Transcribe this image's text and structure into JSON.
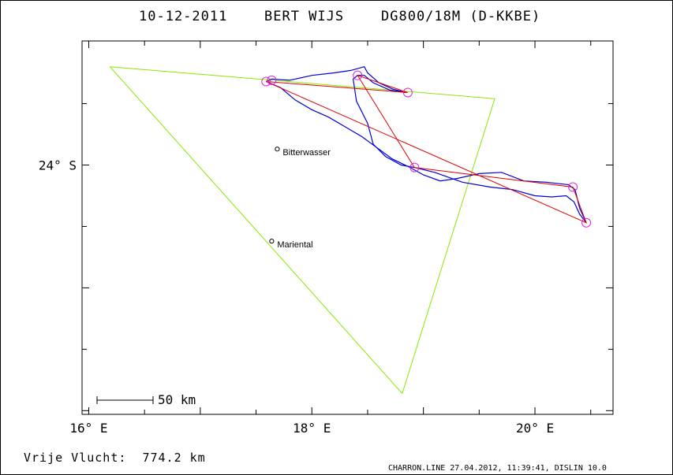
{
  "header": {
    "date": "10-12-2011",
    "pilot": "BERT WIJS",
    "glider": "DG800/18M (D-KKBE)"
  },
  "axes": {
    "x_ticks": [
      {
        "lon": 16,
        "label": "16° E"
      },
      {
        "lon": 18,
        "label": "18° E"
      },
      {
        "lon": 20,
        "label": "20° E"
      }
    ],
    "y_ticks": [
      {
        "lat": -24,
        "label": "24° S"
      }
    ]
  },
  "places": [
    {
      "name": "Bitterwasser",
      "lon": 17.69,
      "lat": -23.87
    },
    {
      "name": "Mariental",
      "lon": 17.64,
      "lat": -24.62
    }
  ],
  "scale": {
    "label": "50 km"
  },
  "footer": {
    "distance_label": "Vrije Vlucht:  774.2 km",
    "credit": "CHARRON.LINE 27.04.2012, 11:39:41, DISLIN 10.0"
  },
  "colors": {
    "track": "#0000d8",
    "task": "#dd0000",
    "triangle": "#88e800",
    "turnpoint": "#dd22dd",
    "frame": "#000000"
  },
  "chart_data": {
    "type": "map",
    "xlim": [
      15.94,
      20.7
    ],
    "ylim": [
      -26.03,
      -22.99
    ],
    "triangle": [
      [
        16.19,
        -23.2
      ],
      [
        19.64,
        -23.46
      ],
      [
        18.81,
        -25.86
      ],
      [
        16.19,
        -23.2
      ]
    ],
    "task_route": [
      [
        17.59,
        -23.32
      ],
      [
        18.86,
        -23.41
      ],
      [
        18.41,
        -23.27
      ],
      [
        18.92,
        -24.02
      ],
      [
        20.34,
        -24.18
      ],
      [
        20.46,
        -24.47
      ],
      [
        17.59,
        -23.32
      ]
    ],
    "turnpoints": [
      [
        17.59,
        -23.32
      ],
      [
        17.64,
        -23.31
      ],
      [
        18.86,
        -23.41
      ],
      [
        18.41,
        -23.27
      ],
      [
        18.92,
        -24.02
      ],
      [
        20.34,
        -24.18
      ],
      [
        20.46,
        -24.47
      ]
    ],
    "track": [
      [
        17.59,
        -23.32
      ],
      [
        17.64,
        -23.3
      ],
      [
        17.8,
        -23.31
      ],
      [
        18.0,
        -23.27
      ],
      [
        18.2,
        -23.25
      ],
      [
        18.35,
        -23.23
      ],
      [
        18.47,
        -23.2
      ],
      [
        18.5,
        -23.25
      ],
      [
        18.6,
        -23.33
      ],
      [
        18.72,
        -23.38
      ],
      [
        18.84,
        -23.41
      ],
      [
        18.7,
        -23.39
      ],
      [
        18.55,
        -23.33
      ],
      [
        18.47,
        -23.27
      ],
      [
        18.41,
        -23.27
      ],
      [
        18.37,
        -23.3
      ],
      [
        18.4,
        -23.48
      ],
      [
        18.5,
        -23.66
      ],
      [
        18.55,
        -23.83
      ],
      [
        18.66,
        -23.93
      ],
      [
        18.8,
        -24.0
      ],
      [
        18.92,
        -24.02
      ],
      [
        19.1,
        -24.06
      ],
      [
        19.35,
        -24.14
      ],
      [
        19.6,
        -24.18
      ],
      [
        19.8,
        -24.2
      ],
      [
        20.0,
        -24.25
      ],
      [
        20.15,
        -24.26
      ],
      [
        20.28,
        -24.25
      ],
      [
        20.35,
        -24.3
      ],
      [
        20.4,
        -24.4
      ],
      [
        20.46,
        -24.47
      ],
      [
        20.4,
        -24.35
      ],
      [
        20.36,
        -24.2
      ],
      [
        20.3,
        -24.16
      ],
      [
        20.1,
        -24.14
      ],
      [
        19.9,
        -24.13
      ],
      [
        19.7,
        -24.06
      ],
      [
        19.5,
        -24.07
      ],
      [
        19.3,
        -24.11
      ],
      [
        19.15,
        -24.13
      ],
      [
        19.0,
        -24.08
      ],
      [
        18.88,
        -24.02
      ],
      [
        18.72,
        -23.95
      ],
      [
        18.6,
        -23.87
      ],
      [
        18.45,
        -23.77
      ],
      [
        18.3,
        -23.69
      ],
      [
        18.15,
        -23.61
      ],
      [
        18.0,
        -23.55
      ],
      [
        17.85,
        -23.47
      ],
      [
        17.72,
        -23.37
      ],
      [
        17.59,
        -23.32
      ]
    ]
  }
}
